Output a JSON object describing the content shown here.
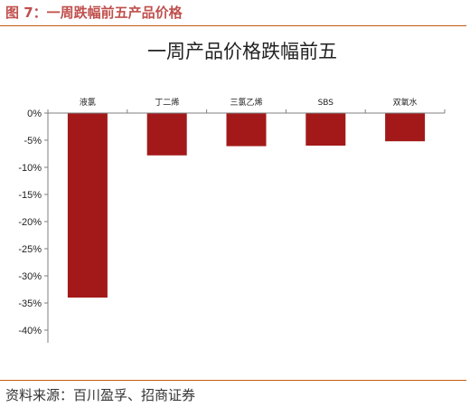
{
  "figure": {
    "caption": "图 7：一周跌幅前五产品价格",
    "source": "资料来源：百川盈孚、招商证券"
  },
  "colors": {
    "bar": "#a31919",
    "accent": "#c0504d",
    "rule": "#c55a11",
    "axis": "#7f7f7f"
  },
  "chart_data": {
    "type": "bar",
    "title": "一周产品价格跌幅前五",
    "xlabel": "",
    "ylabel": "",
    "categories": [
      "液氯",
      "丁二烯",
      "三氯乙烯",
      "SBS",
      "双氧水"
    ],
    "values": [
      -34.0,
      -7.8,
      -6.1,
      -6.0,
      -5.2
    ],
    "unit": "%",
    "ylim": [
      -40,
      0
    ],
    "yticks": [
      0,
      -5,
      -10,
      -15,
      -20,
      -25,
      -30,
      -35,
      -40
    ],
    "ytick_labels": [
      "0%",
      "-5%",
      "-10%",
      "-15%",
      "-20%",
      "-25%",
      "-30%",
      "-35%",
      "-40%"
    ],
    "category_labels_position": "top",
    "grid": false,
    "legend": "none"
  }
}
